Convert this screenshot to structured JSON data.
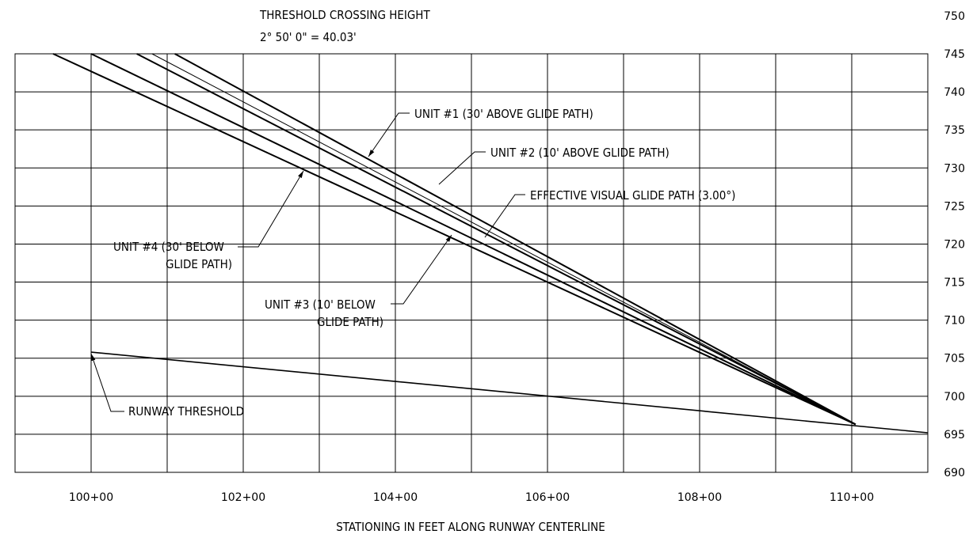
{
  "chart_data": {
    "type": "line",
    "title_line1": "THRESHOLD CROSSING HEIGHT",
    "title_line2": "2° 50' 0\" = 40.03'",
    "xlabel": "STATIONING IN FEET ALONG RUNWAY CENTERLINE",
    "x_ticks": [
      "100+00",
      "102+00",
      "104+00",
      "106+00",
      "108+00",
      "110+00"
    ],
    "y_ticks": [
      750,
      745,
      740,
      735,
      730,
      725,
      720,
      715,
      710,
      705,
      700,
      695,
      690
    ],
    "xlim": [
      9900,
      11100
    ],
    "ylim": [
      690,
      745
    ],
    "grid": true,
    "series": [
      {
        "id": "unit1",
        "points": [
          [
            10110,
            745
          ],
          [
            11005,
            696.3
          ]
        ]
      },
      {
        "id": "unit2",
        "points": [
          [
            10060,
            745
          ],
          [
            11005,
            696.3
          ]
        ]
      },
      {
        "id": "effective",
        "points": [
          [
            10080,
            745
          ],
          [
            11005,
            696.3
          ]
        ]
      },
      {
        "id": "unit3",
        "points": [
          [
            10000,
            745
          ],
          [
            11005,
            696.3
          ]
        ]
      },
      {
        "id": "unit4",
        "points": [
          [
            9950,
            745
          ],
          [
            11005,
            696.3
          ]
        ]
      },
      {
        "id": "runway",
        "points": [
          [
            10000,
            705.8
          ],
          [
            11100,
            695.2
          ]
        ]
      }
    ],
    "annotations": [
      {
        "id": "unit1",
        "lines": [
          "UNIT #1 (30' ABOVE GLIDE PATH)"
        ]
      },
      {
        "id": "unit2",
        "lines": [
          "UNIT #2 (10' ABOVE GLIDE PATH)"
        ]
      },
      {
        "id": "effective",
        "lines": [
          "EFFECTIVE VISUAL GLIDE PATH (3.00°)"
        ]
      },
      {
        "id": "unit4",
        "lines": [
          "UNIT #4 (30' BELOW",
          "GLIDE PATH)"
        ]
      },
      {
        "id": "unit3",
        "lines": [
          "UNIT #3 (10' BELOW",
          "GLIDE PATH)"
        ]
      },
      {
        "id": "threshold",
        "lines": [
          "RUNWAY THRESHOLD"
        ]
      }
    ]
  }
}
